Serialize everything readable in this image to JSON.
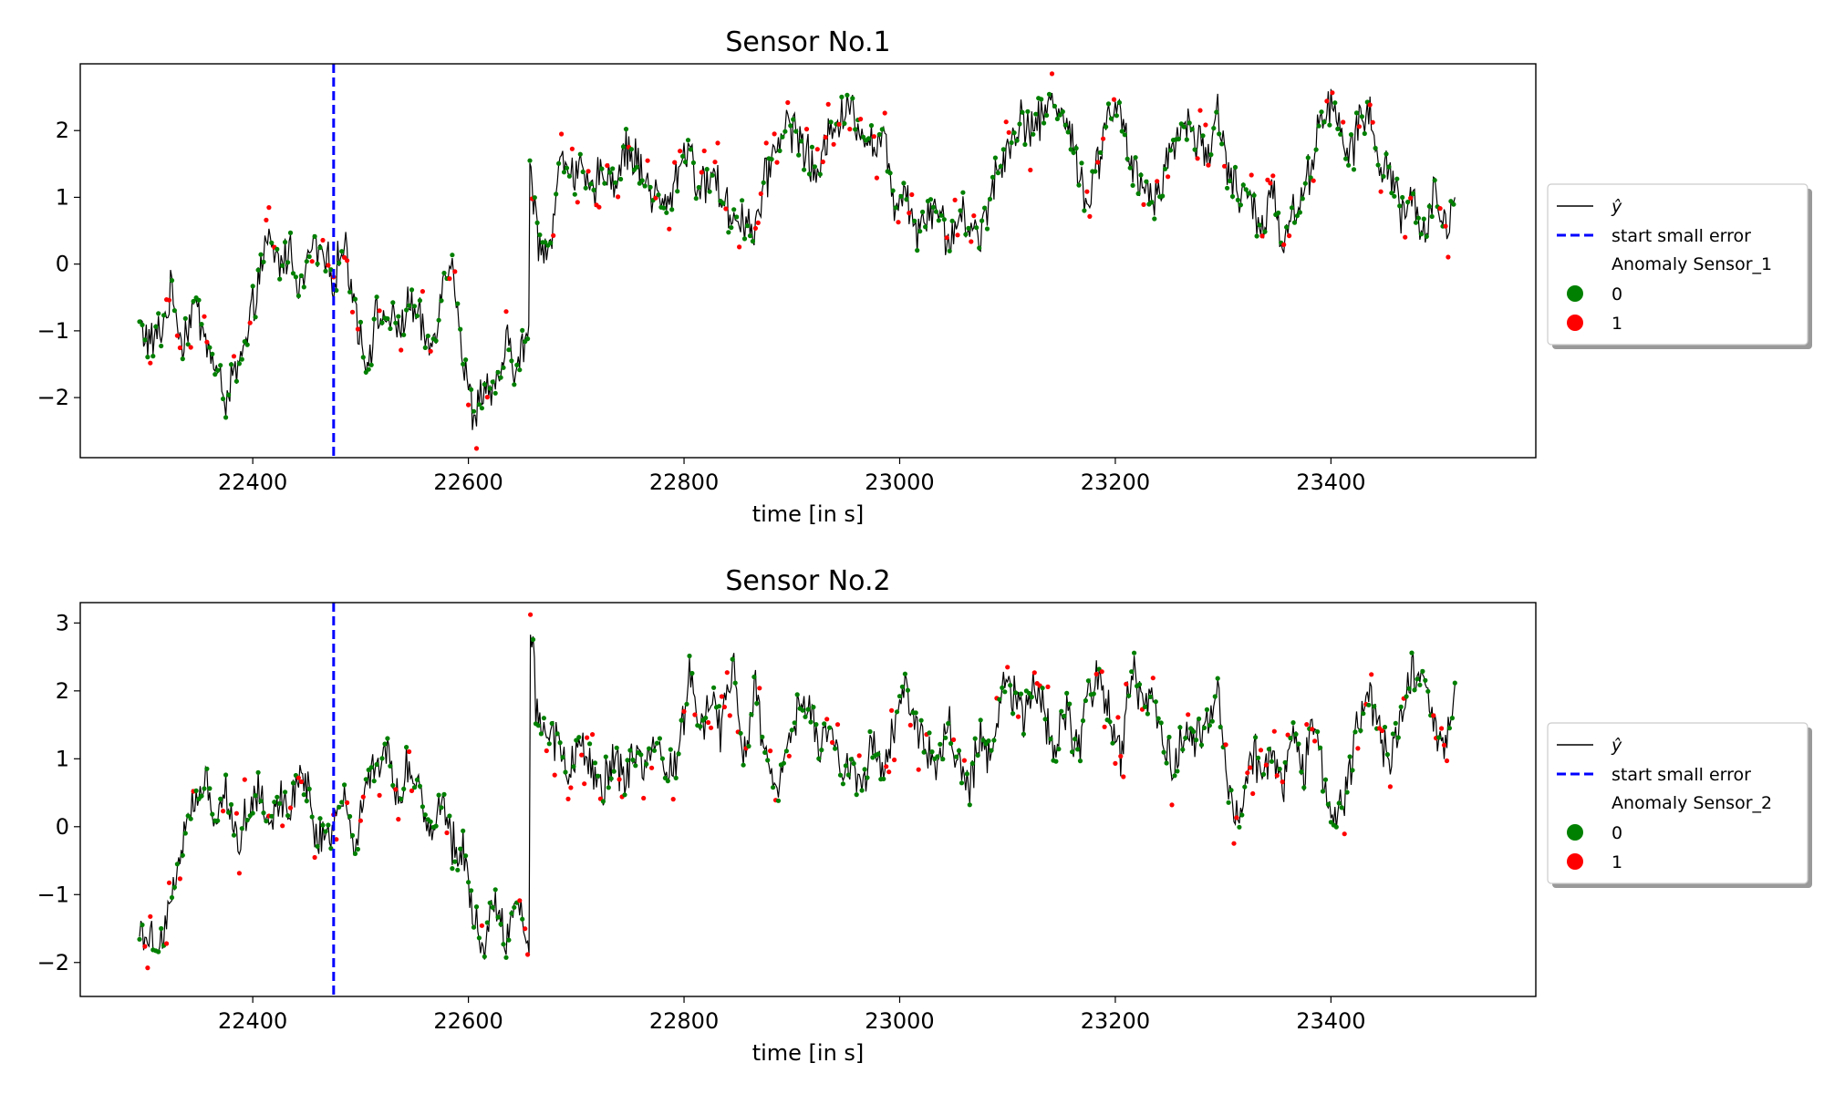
{
  "chart_data": [
    {
      "type": "line",
      "title": "Sensor No.1",
      "xlabel": "time [in s]",
      "ylabel": "",
      "xlim": [
        22240,
        23590
      ],
      "ylim": [
        -2.9,
        3.0
      ],
      "xticks": [
        22400,
        22600,
        22800,
        23000,
        23200,
        23400
      ],
      "yticks": [
        -2,
        -1,
        0,
        1,
        2
      ],
      "ytick_labels": [
        "−2",
        "−1",
        "0",
        "1",
        "2"
      ],
      "start_small_error_x": 22475,
      "colors": {
        "line": "#000000",
        "vline": "#0000ff",
        "normal": "#008000",
        "anomaly": "#ff0000"
      },
      "legend": {
        "placement": "right-outside",
        "line_label": "ŷ",
        "vline_label": "start small error",
        "anomaly_title": "Anomaly Sensor_1",
        "class0": "0",
        "class1": "1"
      },
      "anchors": [
        [
          22295,
          -0.9
        ],
        [
          22305,
          -1.2
        ],
        [
          22315,
          -1.0
        ],
        [
          22325,
          -0.4
        ],
        [
          22335,
          -1.2
        ],
        [
          22345,
          -0.6
        ],
        [
          22355,
          -1.0
        ],
        [
          22365,
          -1.6
        ],
        [
          22375,
          -2.0
        ],
        [
          22385,
          -1.6
        ],
        [
          22395,
          -1.2
        ],
        [
          22405,
          -0.2
        ],
        [
          22415,
          0.3
        ],
        [
          22425,
          0.0
        ],
        [
          22435,
          0.2
        ],
        [
          22445,
          -0.4
        ],
        [
          22455,
          0.3
        ],
        [
          22465,
          0.1
        ],
        [
          22475,
          -0.2
        ],
        [
          22485,
          0.3
        ],
        [
          22495,
          -0.6
        ],
        [
          22505,
          -1.5
        ],
        [
          22515,
          -0.8
        ],
        [
          22525,
          -0.8
        ],
        [
          22535,
          -1.0
        ],
        [
          22545,
          -0.6
        ],
        [
          22555,
          -0.9
        ],
        [
          22565,
          -1.3
        ],
        [
          22575,
          -0.4
        ],
        [
          22585,
          0.2
        ],
        [
          22595,
          -1.5
        ],
        [
          22605,
          -2.3
        ],
        [
          22615,
          -1.8
        ],
        [
          22625,
          -2.0
        ],
        [
          22635,
          -1.2
        ],
        [
          22645,
          -1.6
        ],
        [
          22655,
          -1.0
        ],
        [
          22658,
          1.3
        ],
        [
          22665,
          0.4
        ],
        [
          22675,
          0.2
        ],
        [
          22685,
          1.5
        ],
        [
          22695,
          1.5
        ],
        [
          22705,
          1.3
        ],
        [
          22715,
          1.0
        ],
        [
          22725,
          1.5
        ],
        [
          22735,
          1.2
        ],
        [
          22745,
          1.7
        ],
        [
          22755,
          1.6
        ],
        [
          22765,
          1.2
        ],
        [
          22775,
          1.0
        ],
        [
          22785,
          0.8
        ],
        [
          22795,
          1.5
        ],
        [
          22805,
          1.8
        ],
        [
          22815,
          1.0
        ],
        [
          22825,
          1.4
        ],
        [
          22835,
          1.0
        ],
        [
          22845,
          0.7
        ],
        [
          22855,
          0.7
        ],
        [
          22865,
          0.5
        ],
        [
          22875,
          1.2
        ],
        [
          22885,
          1.8
        ],
        [
          22895,
          2.1
        ],
        [
          22905,
          2.0
        ],
        [
          22915,
          1.6
        ],
        [
          22925,
          1.2
        ],
        [
          22935,
          2.2
        ],
        [
          22945,
          2.1
        ],
        [
          22955,
          2.4
        ],
        [
          22965,
          2.0
        ],
        [
          22975,
          1.8
        ],
        [
          22985,
          1.9
        ],
        [
          22995,
          0.9
        ],
        [
          23005,
          1.2
        ],
        [
          23015,
          0.5
        ],
        [
          23025,
          0.8
        ],
        [
          23035,
          0.9
        ],
        [
          23045,
          0.3
        ],
        [
          23055,
          0.7
        ],
        [
          23065,
          0.6
        ],
        [
          23075,
          0.4
        ],
        [
          23085,
          1.2
        ],
        [
          23095,
          1.5
        ],
        [
          23105,
          2.0
        ],
        [
          23115,
          2.2
        ],
        [
          23125,
          2.0
        ],
        [
          23135,
          2.3
        ],
        [
          23145,
          2.5
        ],
        [
          23155,
          2.1
        ],
        [
          23165,
          1.5
        ],
        [
          23175,
          0.9
        ],
        [
          23185,
          1.6
        ],
        [
          23195,
          2.4
        ],
        [
          23205,
          2.2
        ],
        [
          23215,
          1.4
        ],
        [
          23225,
          1.2
        ],
        [
          23235,
          1.0
        ],
        [
          23245,
          1.4
        ],
        [
          23255,
          1.8
        ],
        [
          23265,
          2.2
        ],
        [
          23275,
          1.9
        ],
        [
          23285,
          1.6
        ],
        [
          23295,
          2.3
        ],
        [
          23305,
          1.4
        ],
        [
          23315,
          1.0
        ],
        [
          23325,
          1.0
        ],
        [
          23335,
          0.4
        ],
        [
          23345,
          1.3
        ],
        [
          23355,
          0.3
        ],
        [
          23365,
          0.8
        ],
        [
          23375,
          1.0
        ],
        [
          23385,
          1.8
        ],
        [
          23395,
          2.4
        ],
        [
          23405,
          2.2
        ],
        [
          23415,
          1.6
        ],
        [
          23425,
          2.0
        ],
        [
          23435,
          2.4
        ],
        [
          23445,
          1.3
        ],
        [
          23455,
          1.5
        ],
        [
          23465,
          0.8
        ],
        [
          23475,
          1.0
        ],
        [
          23485,
          0.3
        ],
        [
          23495,
          1.1
        ],
        [
          23505,
          0.5
        ],
        [
          23515,
          1.0
        ]
      ]
    },
    {
      "type": "line",
      "title": "Sensor No.2",
      "xlabel": "time [in s]",
      "ylabel": "",
      "xlim": [
        22240,
        23590
      ],
      "ylim": [
        -2.5,
        3.3
      ],
      "xticks": [
        22400,
        22600,
        22800,
        23000,
        23200,
        23400
      ],
      "yticks": [
        -2,
        -1,
        0,
        1,
        2,
        3
      ],
      "ytick_labels": [
        "−2",
        "−1",
        "0",
        "1",
        "2",
        "3"
      ],
      "start_small_error_x": 22475,
      "colors": {
        "line": "#000000",
        "vline": "#0000ff",
        "normal": "#008000",
        "anomaly": "#ff0000"
      },
      "legend": {
        "placement": "right-outside",
        "line_label": "ŷ",
        "vline_label": "start small error",
        "anomaly_title": "Anomaly Sensor_2",
        "class0": "0",
        "class1": "1"
      },
      "anchors": [
        [
          22295,
          -1.4
        ],
        [
          22305,
          -1.7
        ],
        [
          22315,
          -1.6
        ],
        [
          22325,
          -1.0
        ],
        [
          22335,
          -0.2
        ],
        [
          22345,
          0.3
        ],
        [
          22355,
          0.6
        ],
        [
          22365,
          0.2
        ],
        [
          22375,
          0.5
        ],
        [
          22385,
          -0.2
        ],
        [
          22395,
          0.2
        ],
        [
          22405,
          0.6
        ],
        [
          22415,
          0.1
        ],
        [
          22425,
          0.5
        ],
        [
          22435,
          0.2
        ],
        [
          22445,
          1.0
        ],
        [
          22455,
          0.1
        ],
        [
          22465,
          -0.2
        ],
        [
          22475,
          0.1
        ],
        [
          22485,
          0.4
        ],
        [
          22495,
          -0.3
        ],
        [
          22505,
          0.7
        ],
        [
          22515,
          0.9
        ],
        [
          22525,
          1.1
        ],
        [
          22535,
          0.4
        ],
        [
          22545,
          1.0
        ],
        [
          22555,
          0.5
        ],
        [
          22565,
          -0.1
        ],
        [
          22575,
          0.4
        ],
        [
          22585,
          -0.2
        ],
        [
          22595,
          -0.4
        ],
        [
          22605,
          -1.3
        ],
        [
          22615,
          -1.7
        ],
        [
          22625,
          -1.1
        ],
        [
          22635,
          -1.6
        ],
        [
          22645,
          -1.0
        ],
        [
          22655,
          -1.8
        ],
        [
          22660,
          2.8
        ],
        [
          22665,
          1.6
        ],
        [
          22675,
          1.4
        ],
        [
          22685,
          1.2
        ],
        [
          22695,
          0.8
        ],
        [
          22705,
          1.2
        ],
        [
          22715,
          0.7
        ],
        [
          22725,
          0.6
        ],
        [
          22735,
          1.0
        ],
        [
          22745,
          0.7
        ],
        [
          22755,
          1.0
        ],
        [
          22765,
          0.8
        ],
        [
          22775,
          1.1
        ],
        [
          22785,
          0.8
        ],
        [
          22795,
          1.0
        ],
        [
          22805,
          2.3
        ],
        [
          22815,
          1.4
        ],
        [
          22825,
          2.0
        ],
        [
          22835,
          1.3
        ],
        [
          22845,
          2.5
        ],
        [
          22855,
          0.9
        ],
        [
          22865,
          2.1
        ],
        [
          22875,
          1.0
        ],
        [
          22885,
          0.6
        ],
        [
          22895,
          1.0
        ],
        [
          22905,
          1.7
        ],
        [
          22915,
          1.8
        ],
        [
          22925,
          1.2
        ],
        [
          22935,
          1.5
        ],
        [
          22945,
          0.7
        ],
        [
          22955,
          1.0
        ],
        [
          22965,
          0.5
        ],
        [
          22975,
          1.3
        ],
        [
          22985,
          0.8
        ],
        [
          22995,
          1.5
        ],
        [
          23005,
          2.2
        ],
        [
          23015,
          1.4
        ],
        [
          23025,
          1.2
        ],
        [
          23035,
          0.8
        ],
        [
          23045,
          1.5
        ],
        [
          23055,
          1.0
        ],
        [
          23065,
          0.5
        ],
        [
          23075,
          1.4
        ],
        [
          23085,
          1.0
        ],
        [
          23095,
          2.2
        ],
        [
          23105,
          2.0
        ],
        [
          23115,
          1.6
        ],
        [
          23125,
          2.3
        ],
        [
          23135,
          1.5
        ],
        [
          23145,
          1.2
        ],
        [
          23155,
          1.8
        ],
        [
          23165,
          1.0
        ],
        [
          23175,
          2.0
        ],
        [
          23185,
          2.2
        ],
        [
          23195,
          1.6
        ],
        [
          23205,
          1.0
        ],
        [
          23215,
          2.3
        ],
        [
          23225,
          1.8
        ],
        [
          23235,
          2.1
        ],
        [
          23245,
          1.2
        ],
        [
          23255,
          0.9
        ],
        [
          23265,
          1.5
        ],
        [
          23275,
          1.2
        ],
        [
          23285,
          1.6
        ],
        [
          23295,
          2.0
        ],
        [
          23305,
          0.6
        ],
        [
          23315,
          0.1
        ],
        [
          23325,
          1.2
        ],
        [
          23335,
          0.8
        ],
        [
          23345,
          1.0
        ],
        [
          23355,
          0.6
        ],
        [
          23365,
          1.4
        ],
        [
          23375,
          0.8
        ],
        [
          23385,
          1.8
        ],
        [
          23395,
          0.5
        ],
        [
          23405,
          0.0
        ],
        [
          23415,
          0.6
        ],
        [
          23425,
          1.5
        ],
        [
          23435,
          2.0
        ],
        [
          23445,
          1.4
        ],
        [
          23455,
          0.9
        ],
        [
          23465,
          1.8
        ],
        [
          23475,
          2.2
        ],
        [
          23485,
          2.0
        ],
        [
          23495,
          1.5
        ],
        [
          23505,
          1.2
        ],
        [
          23515,
          2.1
        ]
      ]
    }
  ]
}
